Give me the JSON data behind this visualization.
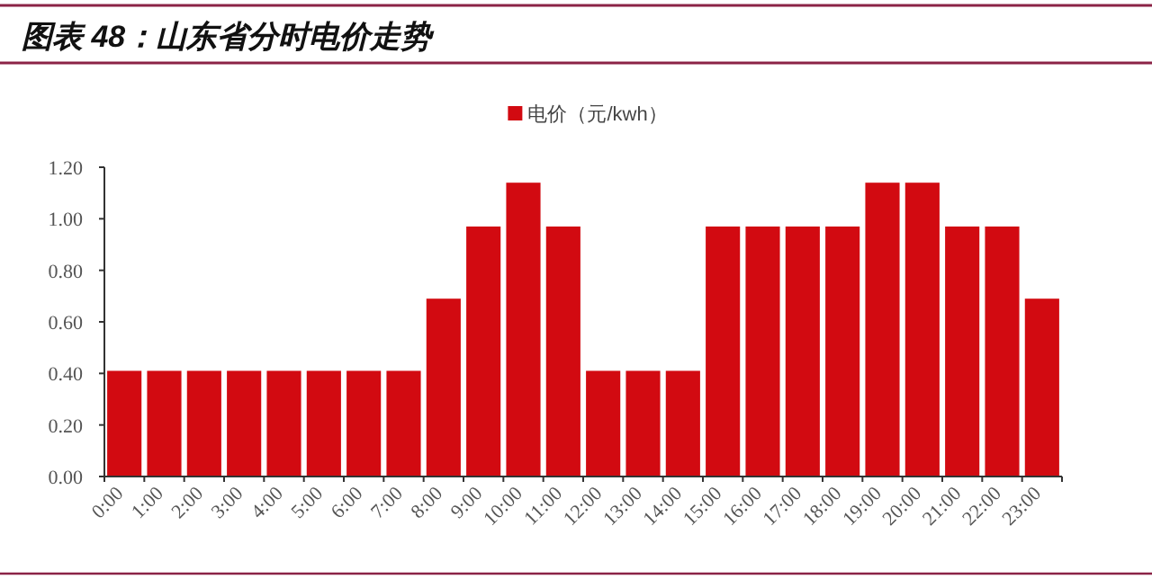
{
  "chart_data": {
    "type": "bar",
    "title": "图表 48：山东省分时电价走势",
    "categories": [
      "0:00",
      "1:00",
      "2:00",
      "3:00",
      "4:00",
      "5:00",
      "6:00",
      "7:00",
      "8:00",
      "9:00",
      "10:00",
      "11:00",
      "12:00",
      "13:00",
      "14:00",
      "15:00",
      "16:00",
      "17:00",
      "18:00",
      "19:00",
      "20:00",
      "21:00",
      "22:00",
      "23:00"
    ],
    "series": [
      {
        "name": "电价（元/kwh）",
        "color": "#d20a11",
        "values": [
          0.41,
          0.41,
          0.41,
          0.41,
          0.41,
          0.41,
          0.41,
          0.41,
          0.69,
          0.97,
          1.14,
          0.97,
          0.41,
          0.41,
          0.41,
          0.97,
          0.97,
          0.97,
          0.97,
          1.14,
          1.14,
          0.97,
          0.97,
          0.69
        ]
      }
    ],
    "ylim": [
      0,
      1.2
    ],
    "yticks": [
      {
        "value": 0,
        "label": "0.00"
      },
      {
        "value": 0.2,
        "label": "0.20"
      },
      {
        "value": 0.4,
        "label": "0.40"
      },
      {
        "value": 0.6,
        "label": "0.60"
      },
      {
        "value": 0.8,
        "label": "0.80"
      },
      {
        "value": 1,
        "label": "1.00"
      },
      {
        "value": 1.2,
        "label": "1.20"
      }
    ],
    "legend": "top",
    "grid": false
  }
}
